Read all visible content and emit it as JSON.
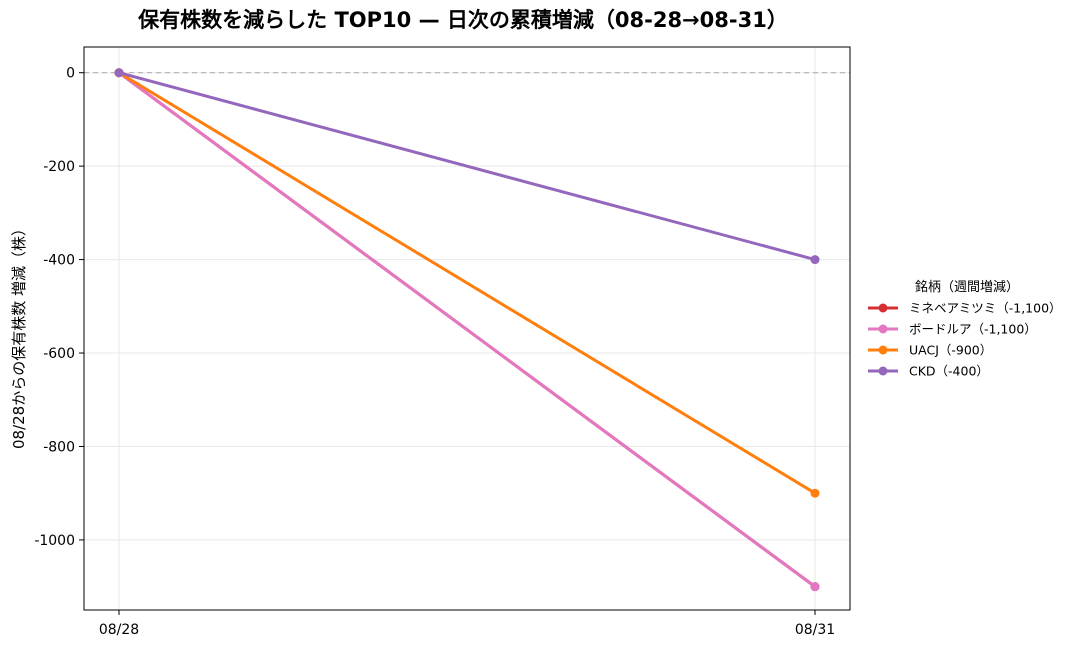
{
  "chart_data": {
    "type": "line",
    "title": "保有株数を減らした TOP10 — 日次の累積増減（08-28→08-31）",
    "xlabel": "",
    "ylabel": "08/28からの保有株数 増減（株）",
    "categories": [
      "08/28",
      "08/31"
    ],
    "yticks": [
      0,
      -200,
      -400,
      -600,
      -800,
      -1000
    ],
    "ylim": [
      -1150,
      55
    ],
    "grid": true,
    "zero_line": true,
    "legend": {
      "title": "銘柄（週間増減）",
      "placement": "right"
    },
    "series": [
      {
        "name": "ミネベアミツミ（-1,100）",
        "color": "#d62f33",
        "values": [
          0,
          -1100
        ]
      },
      {
        "name": "ボードルア（-1,100）",
        "color": "#e377c2",
        "values": [
          0,
          -1100
        ]
      },
      {
        "name": "UACJ（-900）",
        "color": "#ff7f0e",
        "values": [
          0,
          -900
        ]
      },
      {
        "name": "CKD（-400）",
        "color": "#9467bd",
        "values": [
          0,
          -400
        ]
      }
    ]
  }
}
